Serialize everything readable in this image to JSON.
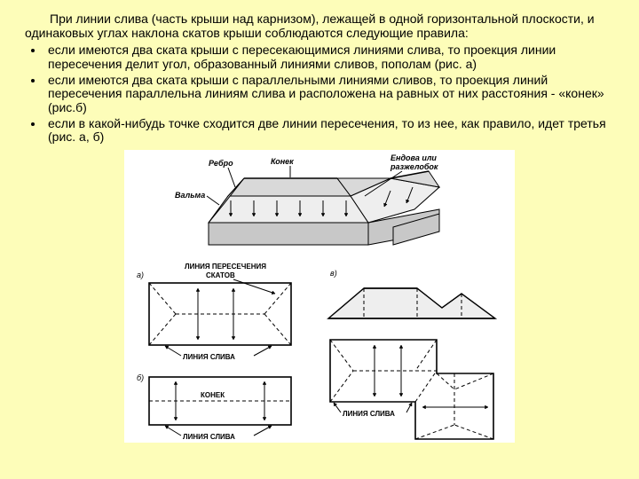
{
  "page": {
    "background_color": "#fdfdb9",
    "text_color": "#000000",
    "font_family": "Arial",
    "font_size_body": 14
  },
  "intro": "При линии слива (часть крыши над карнизом), лежащей в одной горизонтальной плоскости, и одинаковых углах наклона скатов крыши соблюдаются следующие правила:",
  "bullets": [
    "если имеются два ската крыши с пересекающимися линиями слива, то проекция линии пересечения делит угол, образованный линиями сливов, пополам (рис. а)",
    "если имеются два ската крыши с параллельными линиями сливов, то проекция линий пересечения параллельна линиям слива и расположена на равных от них расстояния - «конек» (рис.б)",
    "если в какой-нибудь точке сходится две линии пересечения, то из нее, как правило, идет третья (рис. а, б)"
  ],
  "diagram": {
    "type": "infographic",
    "panel_bg": "#ffffff",
    "line_color": "#000000",
    "fill_roof_light": "#eeeeee",
    "fill_roof_dark": "#d9d9d9",
    "fill_wall": "#c8c8c8",
    "label_fontsize": 9,
    "label_fontsize_small": 8,
    "label_weight_bold": "bold",
    "arrow_color": "#000000",
    "labels": {
      "top_roof": {
        "konek": "Конек",
        "rebro": "Ребро",
        "valma": "Вальма",
        "endova": "Ендова или",
        "razzhelobok": "разжелобок"
      },
      "panel_a": "а)",
      "panel_b": "б)",
      "panel_v": "в)",
      "liniya_peresecheniya": "ЛИНИЯ ПЕРЕСЕЧЕНИЯ",
      "skatov": "СКАТОВ",
      "liniya_sliva": "ЛИНИЯ СЛИВА",
      "konek_caps": "КОНЕК"
    }
  }
}
